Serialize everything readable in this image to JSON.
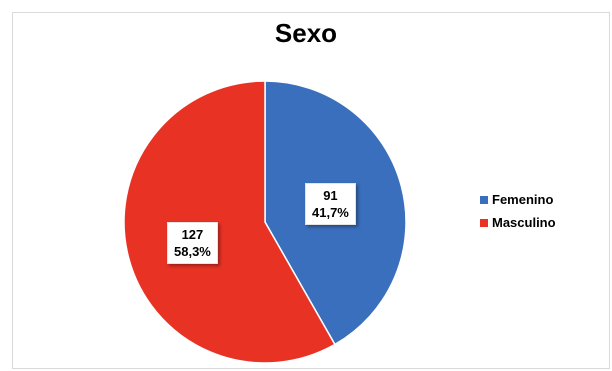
{
  "chart_data": {
    "type": "pie",
    "title": "Sexo",
    "slices": [
      {
        "name": "Femenino",
        "value": 91,
        "percent_label": "41,7%",
        "color": "#3a6fbd"
      },
      {
        "name": "Masculino",
        "value": 127,
        "percent_label": "58,3%",
        "color": "#e83224"
      }
    ],
    "legend_position": "right"
  }
}
